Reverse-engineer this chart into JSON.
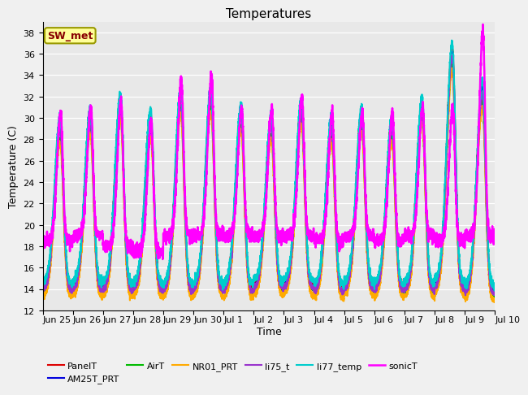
{
  "title": "Temperatures",
  "xlabel": "Time",
  "ylabel": "Temperature (C)",
  "ylim": [
    12,
    39
  ],
  "yticks": [
    12,
    14,
    16,
    18,
    20,
    22,
    24,
    26,
    28,
    30,
    32,
    34,
    36,
    38
  ],
  "fig_bg": "#f0f0f0",
  "axes_bg": "#e8e8e8",
  "series": [
    {
      "name": "PanelT",
      "color": "#dd0000",
      "lw": 1.5
    },
    {
      "name": "AM25T_PRT",
      "color": "#0000dd",
      "lw": 1.5
    },
    {
      "name": "AirT",
      "color": "#00bb00",
      "lw": 1.5
    },
    {
      "name": "NR01_PRT",
      "color": "#ffaa00",
      "lw": 1.5
    },
    {
      "name": "li75_t",
      "color": "#9933cc",
      "lw": 1.5
    },
    {
      "name": "li77_temp",
      "color": "#00cccc",
      "lw": 1.5
    },
    {
      "name": "sonicT",
      "color": "#ff00ff",
      "lw": 1.8
    }
  ],
  "annotation_text": "SW_met",
  "annotation_bg": "#ffff99",
  "annotation_border": "#999900",
  "date_labels": [
    "Jun 25",
    "Jun 26",
    "Jun 27",
    "Jun 28",
    "Jun 29",
    "Jun 30",
    "Jul 1",
    "Jul 2",
    "Jul 3",
    "Jul 4",
    "Jul 5",
    "Jul 6",
    "Jul 7",
    "Jul 8",
    "Jul 9",
    "Jul 10"
  ],
  "title_fontsize": 11,
  "label_fontsize": 9,
  "tick_fontsize": 8,
  "legend_fontsize": 8
}
